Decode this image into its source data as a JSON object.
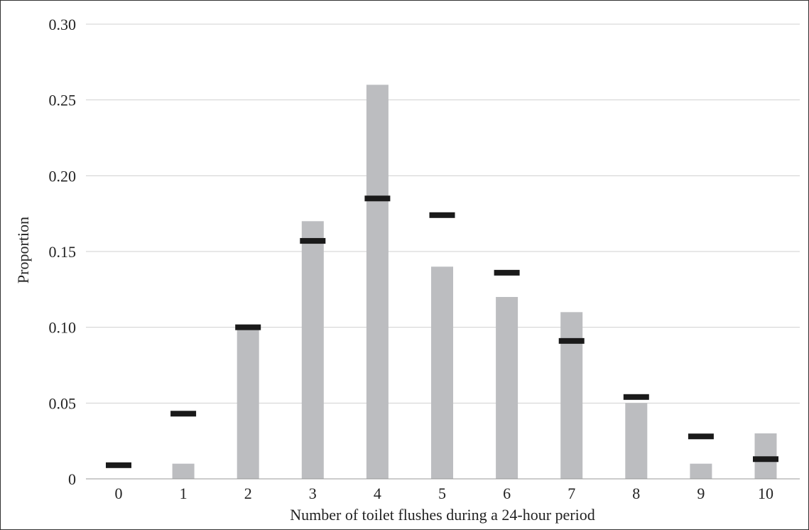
{
  "chart_data": {
    "type": "bar",
    "title": "",
    "xlabel": "Number of toilet flushes during a 24-hour period",
    "ylabel": "Proportion",
    "categories": [
      "0",
      "1",
      "2",
      "3",
      "4",
      "5",
      "6",
      "7",
      "8",
      "9",
      "10"
    ],
    "ylim": [
      0,
      0.3
    ],
    "yticks": [
      0,
      0.05,
      0.1,
      0.15,
      0.2,
      0.25,
      0.3
    ],
    "ytick_labels": [
      "0",
      "0.05",
      "0.10",
      "0.15",
      "0.20",
      "0.25",
      "0.30"
    ],
    "grid": true,
    "series": [
      {
        "type": "bar",
        "values": [
          0.0,
          0.01,
          0.1,
          0.17,
          0.26,
          0.14,
          0.12,
          0.11,
          0.05,
          0.01,
          0.03
        ],
        "color": "#bcbdc0"
      },
      {
        "type": "marker",
        "values": [
          0.009,
          0.043,
          0.1,
          0.157,
          0.185,
          0.174,
          0.136,
          0.091,
          0.054,
          0.028,
          0.013
        ],
        "color": "#1a1a1a"
      }
    ]
  }
}
